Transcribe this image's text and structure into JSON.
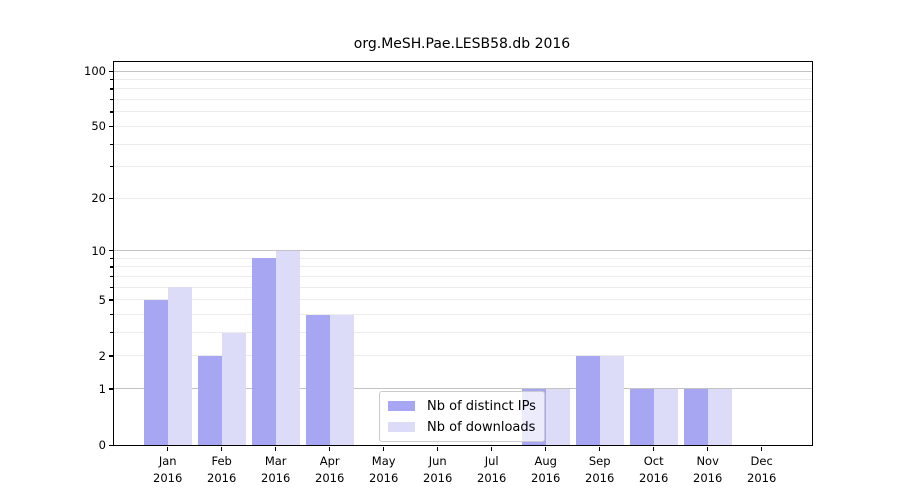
{
  "title": "org.MeSH.Pae.LESB58.db 2016",
  "chart_data": {
    "type": "bar",
    "title": "org.MeSH.Pae.LESB58.db 2016",
    "xlabel": "",
    "ylabel": "",
    "yscale": "log1p",
    "ylim": [
      0,
      112
    ],
    "grid": "on",
    "legend_position": "inside-lower-center",
    "categories": [
      "Jan",
      "Feb",
      "Mar",
      "Apr",
      "May",
      "Jun",
      "Jul",
      "Aug",
      "Sep",
      "Oct",
      "Nov",
      "Dec"
    ],
    "x_tick_year": "2016",
    "series": [
      {
        "name": "Nb of distinct IPs",
        "color": "#a6a6f2",
        "values": [
          5,
          2,
          9,
          4,
          0,
          0,
          0,
          1,
          2,
          1,
          1,
          0
        ]
      },
      {
        "name": "Nb of downloads",
        "color": "#dcdcf8",
        "values": [
          6,
          3,
          10,
          4,
          0,
          0,
          0,
          1,
          2,
          1,
          1,
          0
        ]
      }
    ],
    "y_ticks": [
      0,
      1,
      2,
      5,
      10,
      20,
      50,
      100
    ],
    "y_major_grid": [
      1,
      10,
      100
    ],
    "y_minor_grid": [
      2,
      3,
      4,
      5,
      6,
      7,
      8,
      9,
      20,
      30,
      40,
      50,
      60,
      70,
      80,
      90
    ],
    "grid_major_color": "#c3c3c3",
    "grid_minor_color": "#ececec"
  },
  "legend": {
    "entries": [
      {
        "label": "Nb of distinct IPs",
        "color": "#a6a6f2"
      },
      {
        "label": "Nb of downloads",
        "color": "#dcdcf8"
      }
    ]
  }
}
